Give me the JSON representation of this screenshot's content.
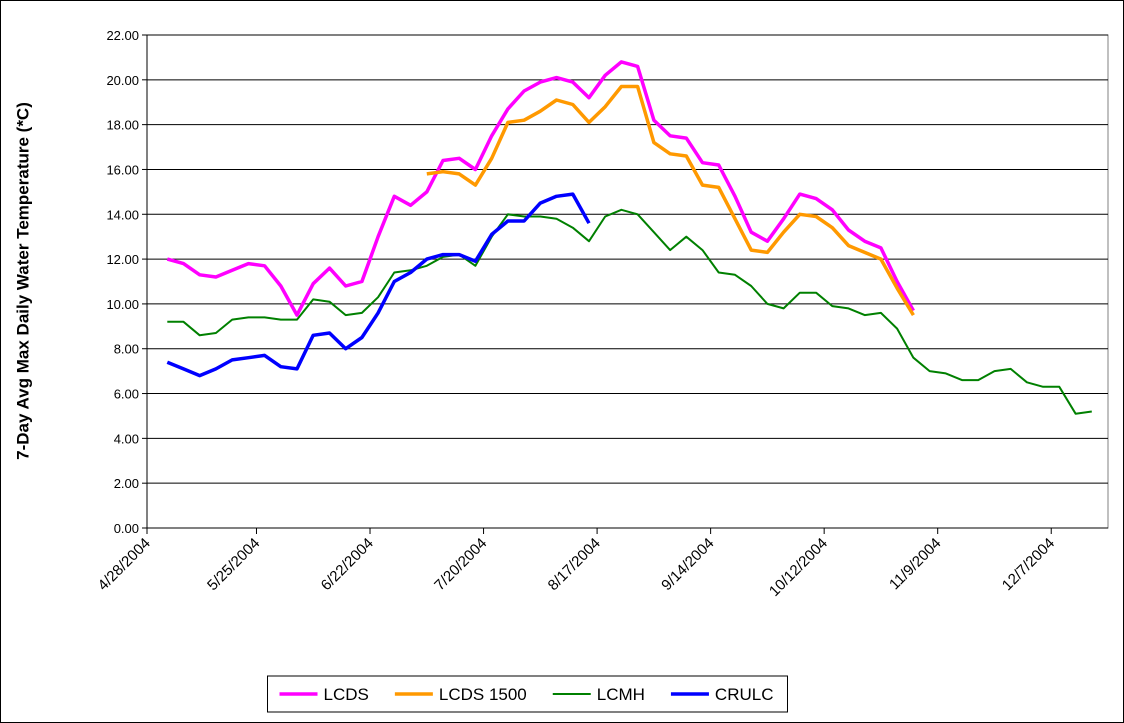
{
  "chart_data": {
    "type": "line",
    "ylabel": "7-Day Avg Max Daily Water Temperature (*C)",
    "x": [
      "5/3/2004",
      "5/7/2004",
      "5/11/2004",
      "5/15/2004",
      "5/19/2004",
      "5/23/2004",
      "5/27/2004",
      "5/31/2004",
      "6/4/2004",
      "6/8/2004",
      "6/12/2004",
      "6/16/2004",
      "6/20/2004",
      "6/24/2004",
      "6/28/2004",
      "7/2/2004",
      "7/6/2004",
      "7/10/2004",
      "7/14/2004",
      "7/18/2004",
      "7/22/2004",
      "7/26/2004",
      "7/30/2004",
      "8/3/2004",
      "8/7/2004",
      "8/11/2004",
      "8/15/2004",
      "8/19/2004",
      "8/23/2004",
      "8/27/2004",
      "8/31/2004",
      "9/4/2004",
      "9/8/2004",
      "9/12/2004",
      "9/16/2004",
      "9/20/2004",
      "9/24/2004",
      "9/28/2004",
      "10/2/2004",
      "10/6/2004",
      "10/10/2004",
      "10/14/2004",
      "10/18/2004",
      "10/22/2004",
      "10/26/2004",
      "10/30/2004",
      "11/3/2004",
      "11/7/2004",
      "11/11/2004",
      "11/15/2004",
      "11/19/2004",
      "11/23/2004",
      "11/27/2004",
      "12/1/2004",
      "12/5/2004",
      "12/9/2004",
      "12/13/2004",
      "12/17/2004"
    ],
    "series": [
      {
        "name": "LCDS",
        "color": "#ff00ff",
        "values": [
          12.0,
          11.8,
          11.3,
          11.2,
          11.5,
          11.8,
          11.7,
          10.8,
          9.5,
          10.9,
          11.6,
          10.8,
          11.0,
          13.0,
          14.8,
          14.4,
          15.0,
          16.4,
          16.5,
          16.0,
          17.5,
          18.7,
          19.5,
          19.9,
          20.1,
          19.9,
          19.2,
          20.2,
          20.8,
          20.6,
          18.2,
          17.5,
          17.4,
          16.3,
          16.2,
          14.8,
          13.2,
          12.8,
          13.8,
          14.9,
          14.7,
          14.2,
          13.3,
          12.8,
          12.5,
          11.0,
          9.7,
          null,
          null,
          null,
          null,
          null,
          null,
          null,
          null,
          null,
          null,
          null
        ]
      },
      {
        "name": "LCDS 1500",
        "color": "#ff9900",
        "values": [
          null,
          null,
          null,
          null,
          null,
          null,
          null,
          null,
          null,
          null,
          null,
          null,
          null,
          null,
          null,
          null,
          15.8,
          15.9,
          15.8,
          15.3,
          16.5,
          18.1,
          18.2,
          18.6,
          19.1,
          18.9,
          18.1,
          18.8,
          19.7,
          19.7,
          17.2,
          16.7,
          16.6,
          15.3,
          15.2,
          13.8,
          12.4,
          12.3,
          13.2,
          14.0,
          13.9,
          13.4,
          12.6,
          12.3,
          12.0,
          10.7,
          9.5,
          null,
          null,
          null,
          null,
          null,
          null,
          null,
          null,
          null,
          null,
          null
        ]
      },
      {
        "name": "LCMH",
        "color": "#008000",
        "values": [
          9.2,
          9.2,
          8.6,
          8.7,
          9.3,
          9.4,
          9.4,
          9.3,
          9.3,
          10.2,
          10.1,
          9.5,
          9.6,
          10.3,
          11.4,
          11.5,
          11.7,
          12.1,
          12.2,
          11.7,
          13.0,
          14.0,
          13.9,
          13.9,
          13.8,
          13.4,
          12.8,
          13.9,
          14.2,
          14.0,
          13.2,
          12.4,
          13.0,
          12.4,
          11.4,
          11.3,
          10.8,
          10.0,
          9.8,
          10.5,
          10.5,
          9.9,
          9.8,
          9.5,
          9.6,
          8.9,
          7.6,
          7.0,
          6.9,
          6.6,
          6.6,
          7.0,
          7.1,
          6.5,
          6.3,
          6.3,
          5.1,
          5.2
        ]
      },
      {
        "name": "CRULC",
        "color": "#0000ff",
        "values": [
          7.4,
          7.1,
          6.8,
          7.1,
          7.5,
          7.6,
          7.7,
          7.2,
          7.1,
          8.6,
          8.7,
          8.0,
          8.5,
          9.6,
          11.0,
          11.4,
          12.0,
          12.2,
          12.2,
          11.9,
          13.1,
          13.7,
          13.7,
          14.5,
          14.8,
          14.9,
          13.6,
          null,
          null,
          null,
          null,
          null,
          null,
          null,
          null,
          null,
          null,
          null,
          null,
          null,
          null,
          null,
          null,
          null,
          null,
          null,
          null,
          null,
          null,
          null,
          null,
          null,
          null,
          null,
          null,
          null,
          null,
          null
        ]
      }
    ],
    "xlim": [
      "4/28/2004",
      "12/21/2004"
    ],
    "xticks": [
      "4/28/2004",
      "5/25/2004",
      "6/22/2004",
      "7/20/2004",
      "8/17/2004",
      "9/14/2004",
      "10/12/2004",
      "11/9/2004",
      "12/7/2004"
    ],
    "ylim": [
      0,
      22
    ],
    "yticks": [
      {
        "value": 0,
        "label": "0.00"
      },
      {
        "value": 2,
        "label": "2.00"
      },
      {
        "value": 4,
        "label": "4.00"
      },
      {
        "value": 6,
        "label": "6.00"
      },
      {
        "value": 8,
        "label": "8.00"
      },
      {
        "value": 10,
        "label": "10.00"
      },
      {
        "value": 12,
        "label": "12.00"
      },
      {
        "value": 14,
        "label": "14.00"
      },
      {
        "value": 16,
        "label": "16.00"
      },
      {
        "value": 18,
        "label": "18.00"
      },
      {
        "value": 20,
        "label": "20.00"
      },
      {
        "value": 22,
        "label": "22.00"
      }
    ],
    "grid": true,
    "legend": "bottom"
  }
}
